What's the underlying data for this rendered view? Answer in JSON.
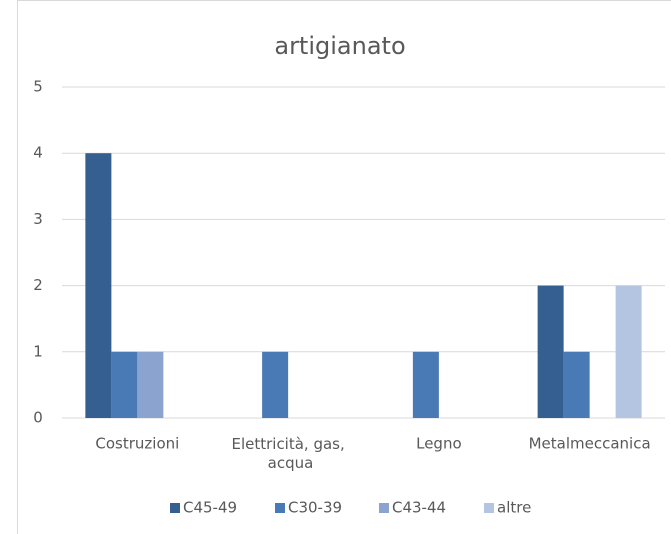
{
  "chart_data": {
    "type": "bar",
    "title": "artigianato",
    "categories": [
      "Costruzioni",
      "Elettricità, gas, acqua",
      "Legno",
      "Metalmeccanica"
    ],
    "series": [
      {
        "name": "C45-49",
        "color": "#355f91",
        "values": [
          4,
          0,
          0,
          2
        ]
      },
      {
        "name": "C30-39",
        "color": "#4a7ab5",
        "values": [
          1,
          1,
          1,
          1
        ]
      },
      {
        "name": "C43-44",
        "color": "#8aa3cf",
        "values": [
          1,
          0,
          0,
          0
        ]
      },
      {
        "name": "altre",
        "color": "#b4c5e2",
        "values": [
          0,
          0,
          0,
          2
        ]
      }
    ],
    "ylim": [
      0,
      5
    ],
    "yticks": [
      0,
      1,
      2,
      3,
      4,
      5
    ],
    "grid": true,
    "legend": "bottom"
  }
}
